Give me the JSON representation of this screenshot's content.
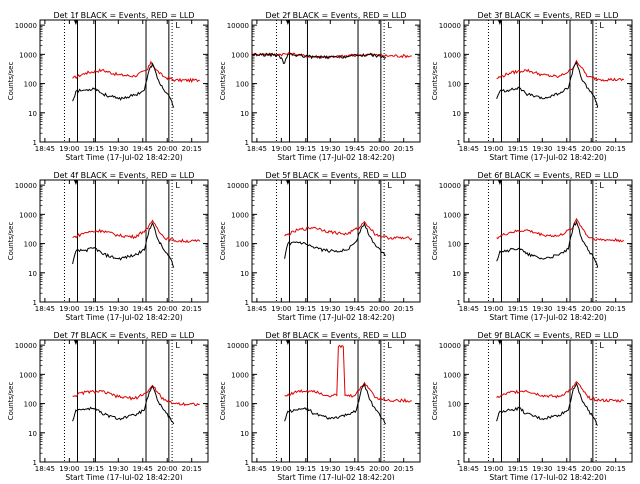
{
  "chart_data": {
    "type": "line",
    "layout": "3x3 grid",
    "shared": {
      "ylabel": "Counts/sec",
      "xlabel": "Start Time (17-Jul-02 18:42:20)",
      "x_ticks": [
        "18:45",
        "19:00",
        "19:15",
        "19:30",
        "19:45",
        "20:00",
        "20:15"
      ],
      "x_tick_minutes": [
        45,
        60,
        75,
        90,
        105,
        120,
        135
      ],
      "xlim_minutes_after_18h": [
        42,
        145
      ],
      "y_ticks": [
        "1",
        "10",
        "100",
        "1000",
        "10000"
      ],
      "y_tick_values": [
        1,
        10,
        100,
        1000,
        10000
      ],
      "ylim": [
        1,
        15000
      ],
      "yscale": "log",
      "series_names": [
        "Events (black)",
        "LLD (red)"
      ],
      "colors": {
        "events": "#000000",
        "lld": "#e00000",
        "axes": "#000000"
      },
      "dotted_vlines_minutes": [
        57,
        123
      ],
      "solid_vlines_minutes": [
        65,
        76,
        107,
        121
      ],
      "start_marker_minutes": 64,
      "mode_marker_label": "L"
    },
    "panels": [
      {
        "title": "Det 1f BLACK = Events, RED = LLD",
        "lld": [
          [
            62,
            150
          ],
          [
            70,
            230
          ],
          [
            80,
            290
          ],
          [
            90,
            200
          ],
          [
            100,
            180
          ],
          [
            108,
            300
          ],
          [
            110,
            560
          ],
          [
            113,
            300
          ],
          [
            118,
            170
          ],
          [
            125,
            130
          ],
          [
            140,
            130
          ]
        ],
        "events": [
          [
            62,
            25
          ],
          [
            64,
            55
          ],
          [
            70,
            60
          ],
          [
            76,
            70
          ],
          [
            80,
            45
          ],
          [
            90,
            30
          ],
          [
            100,
            40
          ],
          [
            106,
            60
          ],
          [
            109,
            300
          ],
          [
            111,
            480
          ],
          [
            114,
            150
          ],
          [
            118,
            60
          ],
          [
            122,
            30
          ],
          [
            124,
            15
          ]
        ]
      },
      {
        "title": "Det 2f BLACK = Events, RED = LLD",
        "lld": [
          [
            42,
            1000
          ],
          [
            58,
            1000
          ],
          [
            66,
            1050
          ],
          [
            75,
            880
          ],
          [
            90,
            800
          ],
          [
            108,
            950
          ],
          [
            114,
            1000
          ],
          [
            122,
            900
          ],
          [
            140,
            880
          ]
        ],
        "events": [
          [
            42,
            1000
          ],
          [
            58,
            950
          ],
          [
            62,
            500
          ],
          [
            64,
            1000
          ],
          [
            70,
            950
          ],
          [
            80,
            800
          ],
          [
            95,
            800
          ],
          [
            108,
            930
          ],
          [
            114,
            980
          ],
          [
            122,
            850
          ],
          [
            124,
            800
          ]
        ]
      },
      {
        "title": "Det 3f BLACK = Events, RED = LLD",
        "lld": [
          [
            62,
            150
          ],
          [
            70,
            230
          ],
          [
            80,
            290
          ],
          [
            90,
            200
          ],
          [
            100,
            170
          ],
          [
            108,
            300
          ],
          [
            111,
            600
          ],
          [
            114,
            350
          ],
          [
            118,
            170
          ],
          [
            125,
            140
          ],
          [
            140,
            135
          ]
        ],
        "events": [
          [
            62,
            30
          ],
          [
            64,
            55
          ],
          [
            70,
            60
          ],
          [
            76,
            70
          ],
          [
            80,
            45
          ],
          [
            90,
            30
          ],
          [
            100,
            45
          ],
          [
            106,
            70
          ],
          [
            109,
            350
          ],
          [
            111,
            520
          ],
          [
            114,
            150
          ],
          [
            118,
            70
          ],
          [
            122,
            35
          ],
          [
            124,
            15
          ]
        ]
      },
      {
        "title": "Det 4f BLACK = Events, RED = LLD",
        "lld": [
          [
            62,
            160
          ],
          [
            70,
            240
          ],
          [
            80,
            280
          ],
          [
            90,
            190
          ],
          [
            100,
            170
          ],
          [
            108,
            320
          ],
          [
            111,
            620
          ],
          [
            114,
            340
          ],
          [
            118,
            160
          ],
          [
            125,
            125
          ],
          [
            140,
            120
          ]
        ],
        "events": [
          [
            62,
            20
          ],
          [
            64,
            55
          ],
          [
            70,
            60
          ],
          [
            76,
            70
          ],
          [
            80,
            45
          ],
          [
            90,
            30
          ],
          [
            100,
            40
          ],
          [
            106,
            60
          ],
          [
            109,
            320
          ],
          [
            111,
            500
          ],
          [
            114,
            150
          ],
          [
            118,
            60
          ],
          [
            122,
            30
          ],
          [
            124,
            15
          ]
        ]
      },
      {
        "title": "Det 5f BLACK = Events, RED = LLD",
        "lld": [
          [
            62,
            180
          ],
          [
            70,
            290
          ],
          [
            80,
            360
          ],
          [
            90,
            250
          ],
          [
            100,
            210
          ],
          [
            108,
            360
          ],
          [
            111,
            560
          ],
          [
            114,
            360
          ],
          [
            118,
            200
          ],
          [
            125,
            160
          ],
          [
            140,
            150
          ]
        ],
        "events": [
          [
            62,
            30
          ],
          [
            64,
            100
          ],
          [
            70,
            110
          ],
          [
            76,
            90
          ],
          [
            80,
            70
          ],
          [
            90,
            55
          ],
          [
            100,
            60
          ],
          [
            106,
            120
          ],
          [
            109,
            350
          ],
          [
            111,
            480
          ],
          [
            114,
            180
          ],
          [
            118,
            80
          ],
          [
            122,
            50
          ],
          [
            124,
            40
          ]
        ]
      },
      {
        "title": "Det 6f BLACK = Events, RED = LLD",
        "lld": [
          [
            62,
            160
          ],
          [
            70,
            240
          ],
          [
            80,
            290
          ],
          [
            90,
            200
          ],
          [
            100,
            180
          ],
          [
            108,
            320
          ],
          [
            111,
            700
          ],
          [
            114,
            380
          ],
          [
            118,
            170
          ],
          [
            125,
            135
          ],
          [
            140,
            130
          ]
        ],
        "events": [
          [
            62,
            25
          ],
          [
            64,
            55
          ],
          [
            70,
            60
          ],
          [
            76,
            70
          ],
          [
            80,
            45
          ],
          [
            90,
            30
          ],
          [
            100,
            40
          ],
          [
            106,
            65
          ],
          [
            109,
            380
          ],
          [
            111,
            560
          ],
          [
            114,
            160
          ],
          [
            118,
            60
          ],
          [
            122,
            30
          ],
          [
            124,
            15
          ]
        ]
      },
      {
        "title": "Det 7f BLACK = Events, RED = LLD",
        "lld": [
          [
            62,
            180
          ],
          [
            70,
            250
          ],
          [
            80,
            260
          ],
          [
            90,
            170
          ],
          [
            100,
            150
          ],
          [
            108,
            250
          ],
          [
            111,
            420
          ],
          [
            114,
            250
          ],
          [
            118,
            130
          ],
          [
            125,
            100
          ],
          [
            140,
            95
          ]
        ],
        "events": [
          [
            62,
            25
          ],
          [
            64,
            60
          ],
          [
            70,
            65
          ],
          [
            76,
            70
          ],
          [
            80,
            45
          ],
          [
            90,
            30
          ],
          [
            100,
            40
          ],
          [
            106,
            60
          ],
          [
            109,
            250
          ],
          [
            111,
            380
          ],
          [
            114,
            130
          ],
          [
            118,
            60
          ],
          [
            122,
            30
          ],
          [
            124,
            20
          ]
        ]
      },
      {
        "title": "Det 8f BLACK = Events, RED = LLD",
        "lld": [
          [
            62,
            180
          ],
          [
            70,
            260
          ],
          [
            80,
            280
          ],
          [
            88,
            190
          ],
          [
            94,
            190
          ],
          [
            95,
            9000
          ],
          [
            98,
            9000
          ],
          [
            99,
            190
          ],
          [
            104,
            180
          ],
          [
            108,
            300
          ],
          [
            111,
            520
          ],
          [
            114,
            320
          ],
          [
            118,
            160
          ],
          [
            125,
            130
          ],
          [
            140,
            125
          ]
        ],
        "events": [
          [
            62,
            25
          ],
          [
            64,
            55
          ],
          [
            70,
            60
          ],
          [
            76,
            70
          ],
          [
            80,
            45
          ],
          [
            90,
            30
          ],
          [
            100,
            40
          ],
          [
            106,
            60
          ],
          [
            109,
            300
          ],
          [
            111,
            450
          ],
          [
            114,
            140
          ],
          [
            118,
            60
          ],
          [
            122,
            30
          ],
          [
            124,
            20
          ]
        ]
      },
      {
        "title": "Det 9f BLACK = Events, RED = LLD",
        "lld": [
          [
            62,
            160
          ],
          [
            70,
            240
          ],
          [
            80,
            280
          ],
          [
            90,
            190
          ],
          [
            100,
            170
          ],
          [
            108,
            310
          ],
          [
            111,
            560
          ],
          [
            114,
            330
          ],
          [
            118,
            160
          ],
          [
            125,
            130
          ],
          [
            140,
            125
          ]
        ],
        "events": [
          [
            62,
            25
          ],
          [
            64,
            55
          ],
          [
            70,
            60
          ],
          [
            76,
            70
          ],
          [
            80,
            45
          ],
          [
            90,
            30
          ],
          [
            100,
            40
          ],
          [
            106,
            60
          ],
          [
            109,
            320
          ],
          [
            111,
            480
          ],
          [
            114,
            150
          ],
          [
            118,
            60
          ],
          [
            122,
            30
          ],
          [
            124,
            18
          ]
        ]
      }
    ]
  }
}
